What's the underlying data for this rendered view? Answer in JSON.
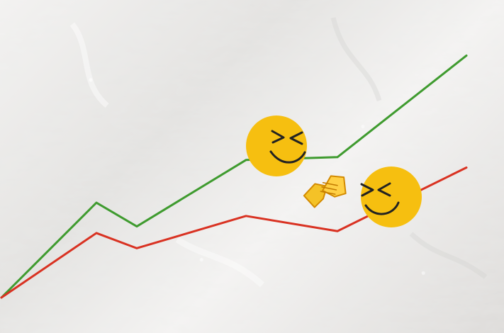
{
  "chart_data": {
    "type": "line",
    "x": [
      0,
      1,
      2,
      3,
      4,
      5
    ],
    "series": [
      {
        "values": [
          0,
          1.0,
          0.75,
          1.45,
          1.48,
          2.55
        ]
      },
      {
        "values": [
          0,
          0.68,
          0.52,
          0.86,
          0.7,
          1.37
        ]
      }
    ],
    "ylim": [
      0,
      2.8
    ]
  },
  "colors": {
    "series_1": "#3f9b2f",
    "series_2": "#d93222",
    "face": "#f6bf10",
    "hands": "#f4c227",
    "background": "#ecebea"
  },
  "icons": [
    "smiling-face-left-icon",
    "handshake-icon",
    "smiling-face-right-icon"
  ]
}
